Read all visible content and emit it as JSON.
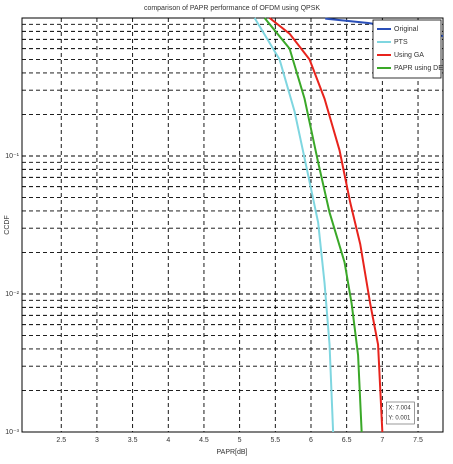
{
  "chart_data": {
    "type": "line",
    "title": "comparison of PAPR performance of OFDM using QPSK",
    "x_label": "PAPR[dB]",
    "y_label": "CCDF",
    "xlim": [
      1.95,
      7.85
    ],
    "xticks": [
      2.5,
      3,
      3.5,
      4,
      4.5,
      5,
      5.5,
      6,
      6.5,
      7,
      7.5
    ],
    "ylim": [
      0.001,
      1
    ],
    "log_y": true,
    "yticks": [
      {
        "value": 0.001,
        "label": "10⁻³"
      },
      {
        "value": 0.01,
        "label": "10⁻²"
      },
      {
        "value": 0.1,
        "label": "10⁻¹"
      }
    ],
    "grid": true,
    "legend": "upper right",
    "series": [
      {
        "name": "Original",
        "color": "#2a4fb8",
        "x": [
          6.2,
          6.8,
          7.3,
          7.85
        ],
        "values": [
          0.99,
          0.92,
          0.84,
          0.74
        ]
      },
      {
        "name": "PTS",
        "color": "#7fd6e0",
        "x": [
          5.21,
          5.56,
          5.77,
          5.95,
          6.1,
          6.19,
          6.26,
          6.31
        ],
        "values": [
          1,
          0.5,
          0.21,
          0.077,
          0.033,
          0.012,
          0.0043,
          0.001
        ]
      },
      {
        "name": "Using GA",
        "color": "#e8231c",
        "x": [
          5.42,
          5.7,
          5.98,
          6.19,
          6.4,
          6.55,
          6.69,
          6.83,
          6.94,
          7.0
        ],
        "values": [
          1,
          0.77,
          0.5,
          0.26,
          0.11,
          0.046,
          0.023,
          0.0085,
          0.0043,
          0.001
        ]
      },
      {
        "name": "PAPR using DE",
        "color": "#3aa828",
        "x": [
          5.35,
          5.7,
          5.91,
          6.1,
          6.26,
          6.47,
          6.57,
          6.66,
          6.71
        ],
        "values": [
          1,
          0.6,
          0.26,
          0.09,
          0.039,
          0.017,
          0.0085,
          0.0036,
          0.001
        ]
      }
    ],
    "annotations": [
      "X: 7.004",
      "Y: 0.001"
    ]
  }
}
